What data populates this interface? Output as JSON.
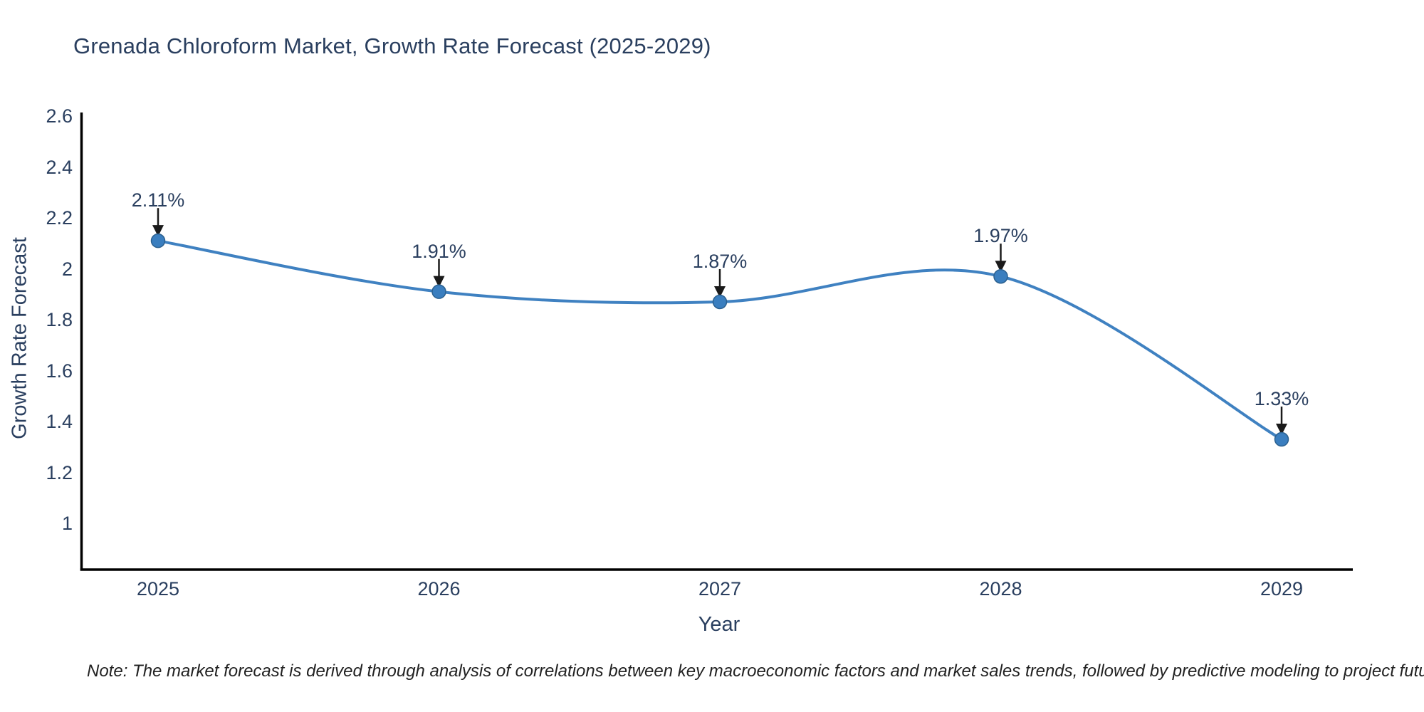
{
  "title": "Grenada Chloroform Market, Growth Rate Forecast (2025-2029)",
  "note": "Note: The market forecast is derived through analysis of correlations between key macroeconomic factors and market sales trends, followed by predictive modeling to project future sales.",
  "chart_data": {
    "type": "line",
    "title": "Grenada Chloroform Market, Growth Rate Forecast (2025-2029)",
    "xlabel": "Year",
    "ylabel": "Growth Rate Forecast",
    "categories": [
      "2025",
      "2026",
      "2027",
      "2028",
      "2029"
    ],
    "values": [
      2.11,
      1.91,
      1.87,
      1.97,
      1.33
    ],
    "point_labels": [
      "2.11%",
      "1.91%",
      "1.87%",
      "1.97%",
      "1.33%"
    ],
    "ytick_values": [
      2.6,
      2.4,
      2.2,
      2.0,
      1.8,
      1.6,
      1.4,
      1.2,
      1.0
    ],
    "ytick_labels": [
      "2.6",
      "2.4",
      "2.2",
      "2",
      "1.8",
      "1.6",
      "1.4",
      "1.2",
      "1"
    ],
    "ylim": [
      0.82,
      2.6
    ],
    "grid": false,
    "legend": "none",
    "line_shape": "spline",
    "annotation_style": "value label with downward arrow to each point",
    "colors": {
      "line": "#3f81c1",
      "marker": "#3a7ebf",
      "marker_edge": "#2b608f",
      "axis": "#000000",
      "text": "#2a3f5f",
      "annotation_arrow": "#1a1a1a",
      "note_text": "#222222",
      "background": "#ffffff"
    }
  }
}
